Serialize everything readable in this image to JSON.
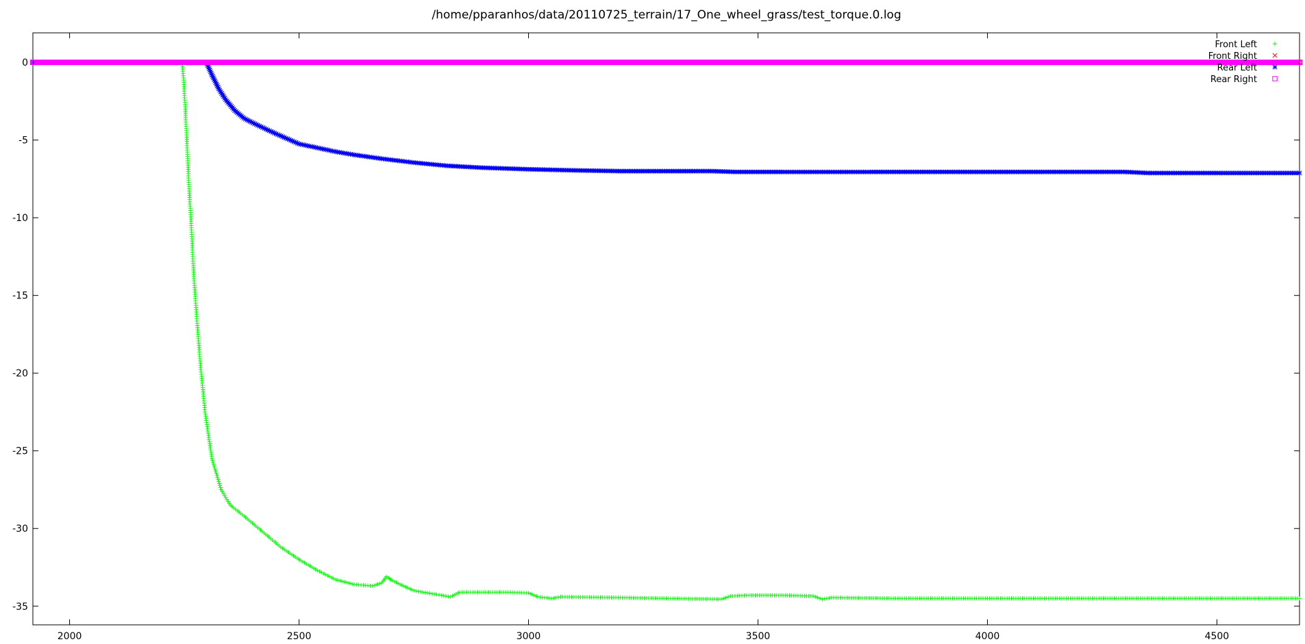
{
  "chart_data": {
    "type": "scatter",
    "title": "/home/pparanhos/data/20110725_terrain/17_One_wheel_grass/test_torque.0.log",
    "xlabel": "",
    "ylabel": "",
    "xlim": [
      1920,
      4680
    ],
    "ylim": [
      -36.2,
      1.9
    ],
    "x_ticks": [
      2000,
      2500,
      3000,
      3500,
      4000,
      4500
    ],
    "y_ticks": [
      0,
      -5,
      -10,
      -15,
      -20,
      -25,
      -30,
      -35
    ],
    "grid": false,
    "legend_position": "top-right",
    "series": [
      {
        "name": "Front Left",
        "color": "#00ff00",
        "marker": "plus",
        "points": [
          [
            1920,
            0
          ],
          [
            2245,
            0
          ],
          [
            2248,
            -1
          ],
          [
            2252,
            -3
          ],
          [
            2256,
            -5.5
          ],
          [
            2260,
            -8
          ],
          [
            2265,
            -10.5
          ],
          [
            2270,
            -13.5
          ],
          [
            2277,
            -16.5
          ],
          [
            2285,
            -19.5
          ],
          [
            2295,
            -22.5
          ],
          [
            2310,
            -25.5
          ],
          [
            2330,
            -27.5
          ],
          [
            2350,
            -28.5
          ],
          [
            2380,
            -29.2
          ],
          [
            2420,
            -30.2
          ],
          [
            2460,
            -31.2
          ],
          [
            2500,
            -32
          ],
          [
            2540,
            -32.7
          ],
          [
            2580,
            -33.3
          ],
          [
            2620,
            -33.6
          ],
          [
            2660,
            -33.7
          ],
          [
            2680,
            -33.5
          ],
          [
            2690,
            -33.1
          ],
          [
            2700,
            -33.3
          ],
          [
            2720,
            -33.6
          ],
          [
            2750,
            -34
          ],
          [
            2790,
            -34.2
          ],
          [
            2830,
            -34.4
          ],
          [
            2850,
            -34.1
          ],
          [
            2950,
            -34.1
          ],
          [
            3000,
            -34.15
          ],
          [
            3020,
            -34.4
          ],
          [
            3050,
            -34.5
          ],
          [
            3070,
            -34.4
          ],
          [
            3200,
            -34.45
          ],
          [
            3300,
            -34.5
          ],
          [
            3420,
            -34.55
          ],
          [
            3440,
            -34.35
          ],
          [
            3480,
            -34.3
          ],
          [
            3550,
            -34.3
          ],
          [
            3620,
            -34.35
          ],
          [
            3640,
            -34.55
          ],
          [
            3660,
            -34.45
          ],
          [
            3800,
            -34.5
          ],
          [
            4000,
            -34.5
          ],
          [
            4300,
            -34.5
          ],
          [
            4680,
            -34.5
          ]
        ]
      },
      {
        "name": "Front Right",
        "color": "#ff0000",
        "marker": "cross",
        "points": [
          [
            1920,
            0
          ],
          [
            4680,
            0
          ]
        ]
      },
      {
        "name": "Rear Left",
        "color": "#0000ff",
        "marker": "star",
        "points": [
          [
            1920,
            0
          ],
          [
            2298,
            0
          ],
          [
            2310,
            -0.8
          ],
          [
            2325,
            -1.7
          ],
          [
            2340,
            -2.4
          ],
          [
            2360,
            -3.1
          ],
          [
            2380,
            -3.6
          ],
          [
            2410,
            -4.05
          ],
          [
            2450,
            -4.6
          ],
          [
            2500,
            -5.25
          ],
          [
            2540,
            -5.5
          ],
          [
            2580,
            -5.75
          ],
          [
            2620,
            -5.95
          ],
          [
            2680,
            -6.2
          ],
          [
            2750,
            -6.45
          ],
          [
            2820,
            -6.65
          ],
          [
            2850,
            -6.7
          ],
          [
            2900,
            -6.78
          ],
          [
            3000,
            -6.88
          ],
          [
            3100,
            -6.95
          ],
          [
            3200,
            -7
          ],
          [
            3400,
            -7
          ],
          [
            3450,
            -7.05
          ],
          [
            3800,
            -7.05
          ],
          [
            4300,
            -7.05
          ],
          [
            4350,
            -7.12
          ],
          [
            4680,
            -7.12
          ]
        ]
      },
      {
        "name": "Rear Right",
        "color": "#ff00ff",
        "marker": "square",
        "points": [
          [
            1920,
            0
          ],
          [
            4680,
            0
          ]
        ]
      }
    ]
  }
}
